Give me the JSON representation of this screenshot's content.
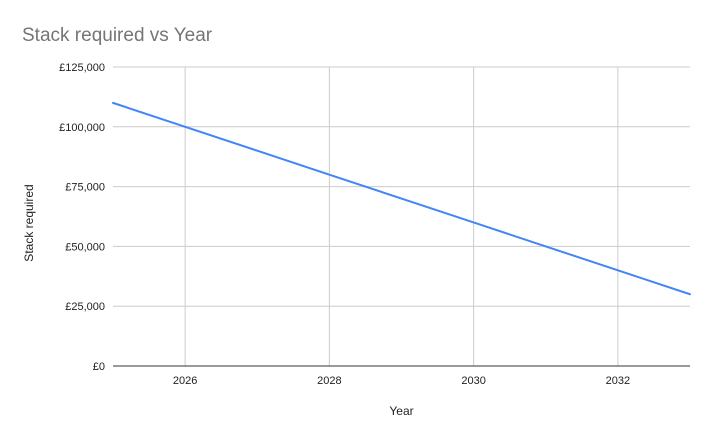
{
  "chart_data": {
    "type": "line",
    "title": "Stack required  vs Year",
    "xlabel": "Year",
    "ylabel": "Stack required",
    "xlim": [
      2025,
      2033
    ],
    "ylim": [
      0,
      125000
    ],
    "x_ticks": [
      2026,
      2028,
      2030,
      2032
    ],
    "y_ticks": [
      0,
      25000,
      50000,
      75000,
      100000,
      125000
    ],
    "y_tick_labels": [
      "£0",
      "£25,000",
      "£50,000",
      "£75,000",
      "£100,000",
      "£125,000"
    ],
    "grid": true,
    "legend": "none",
    "series": [
      {
        "color": "#4285f4",
        "x": [
          2025,
          2026,
          2027,
          2028,
          2029,
          2030,
          2031,
          2032,
          2033
        ],
        "y": [
          110000,
          100000,
          90000,
          80000,
          70000,
          60000,
          50000,
          40000,
          30000
        ]
      }
    ],
    "colors": {
      "grid": "#cccccc",
      "axis": "#333333",
      "title": "#757575",
      "text": "#222222"
    }
  }
}
